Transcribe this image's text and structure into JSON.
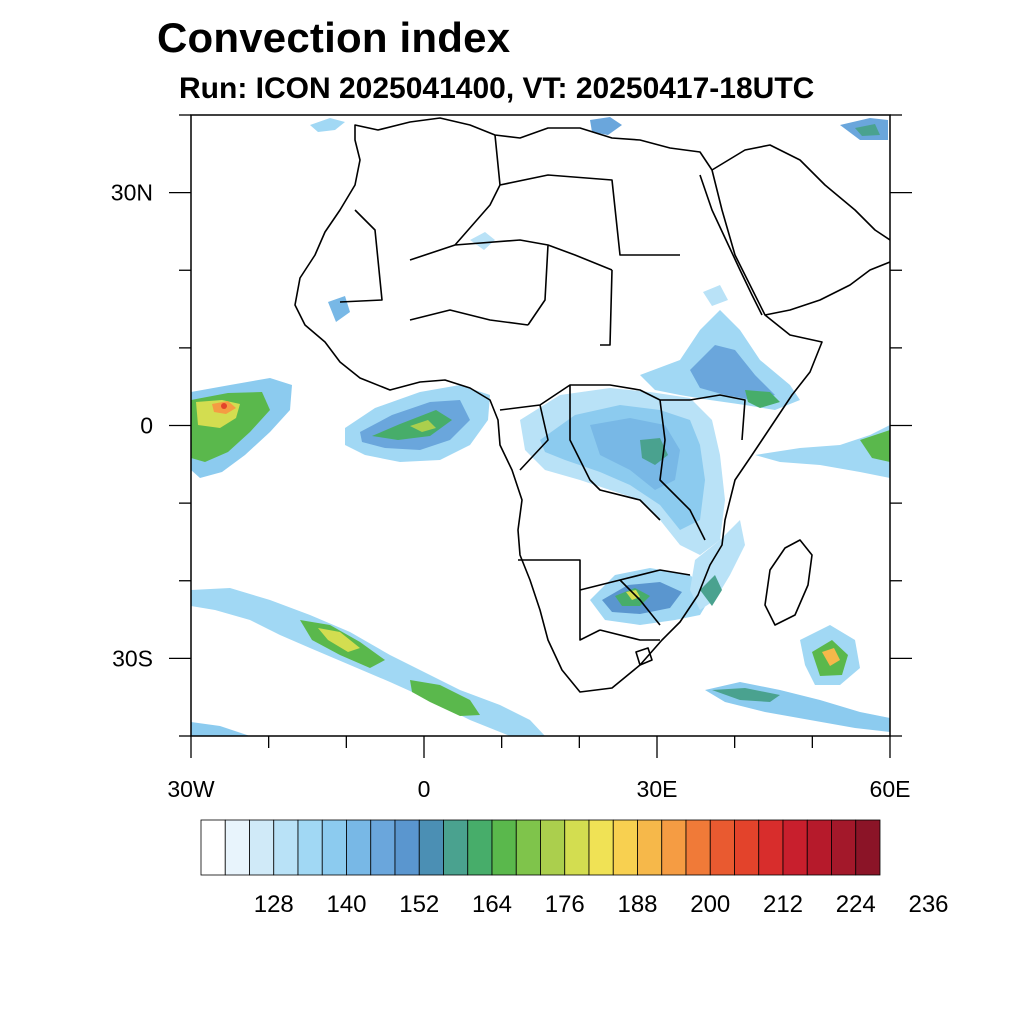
{
  "title": "Convection index",
  "subtitle": "Run: ICON 2025041400,  VT: 20250417-18UTC",
  "map": {
    "lon_range": [
      -30,
      60
    ],
    "lat_range": [
      -40,
      40
    ],
    "lon_tick_labels": [
      {
        "lon": -30,
        "label": "30W"
      },
      {
        "lon": 0,
        "label": "0"
      },
      {
        "lon": 30,
        "label": "30E"
      },
      {
        "lon": 60,
        "label": "60E"
      }
    ],
    "lat_tick_labels": [
      {
        "lat": 30,
        "label": "30N"
      },
      {
        "lat": 0,
        "label": "0"
      },
      {
        "lat": -30,
        "label": "30S"
      }
    ]
  },
  "colorbar": {
    "labels": [
      "128",
      "140",
      "152",
      "164",
      "176",
      "188",
      "200",
      "212",
      "224",
      "236"
    ],
    "colors": [
      "#ffffff",
      "#e8f4fc",
      "#d0eaf8",
      "#b9e2f7",
      "#a1d8f4",
      "#8ccbef",
      "#78b8e6",
      "#6aa6dc",
      "#5a96cf",
      "#4b8fb4",
      "#4aa28f",
      "#47ad6a",
      "#5ab84c",
      "#7fc44b",
      "#abcf4d",
      "#d3dd50",
      "#f0e255",
      "#f8d050",
      "#f6b84a",
      "#f59c43",
      "#f07a38",
      "#e95a30",
      "#e3432b",
      "#d82d2c",
      "#c81f2d",
      "#b61a2b",
      "#a3182a",
      "#8b1427"
    ]
  }
}
